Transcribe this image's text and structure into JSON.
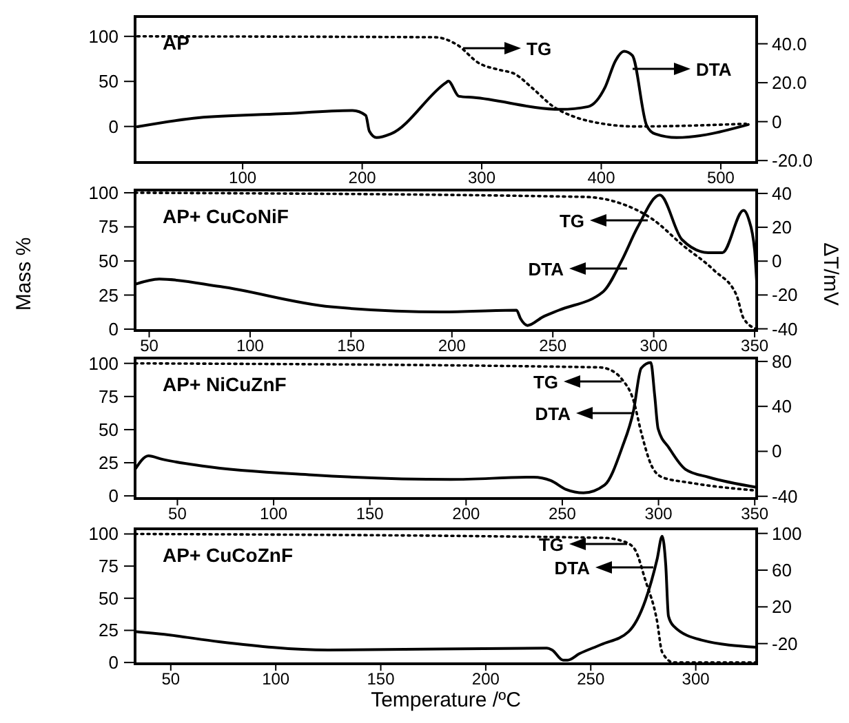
{
  "chart_data": [
    {
      "type": "line",
      "title": "AP",
      "xlim": [
        10,
        530
      ],
      "xticks": [
        100,
        200,
        300,
        400,
        500
      ],
      "ylim": [
        -40,
        122
      ],
      "yticks": [
        0,
        50,
        100
      ],
      "y2lim": [
        -21,
        54
      ],
      "y2ticks": [
        {
          "value": -20,
          "label": "-20.0"
        },
        0,
        {
          "value": 20,
          "label": "20.0"
        },
        {
          "value": 40,
          "label": "40.0"
        }
      ],
      "series": [
        {
          "line_style": "dotted",
          "x": [
            12,
            261,
            279,
            298,
            314,
            328,
            342,
            360,
            379,
            397,
            429,
            521
          ],
          "values": [
            100,
            99,
            91,
            70,
            63,
            58,
            43,
            22,
            10,
            4,
            0,
            3
          ]
        },
        {
          "line_style": "solid",
          "axis": "y2",
          "x": [
            12,
            63,
            132,
            192,
            203,
            206,
            212,
            224,
            270,
            272,
            281,
            293,
            366,
            389,
            403,
            412,
            419,
            426,
            438,
            445,
            463,
            523
          ],
          "values": [
            -2.6,
            2,
            4,
            5.7,
            3.2,
            -4.9,
            -8.2,
            -6.3,
            20,
            20.8,
            13,
            12.4,
            6.3,
            7.7,
            17.4,
            31.4,
            36.1,
            34,
            -2,
            -6.3,
            -8.2,
            -1.5
          ]
        }
      ],
      "annotations": [
        "TG",
        "DTA"
      ]
    },
    {
      "type": "line",
      "title": "AP+ CuCoNiF",
      "ylabel": "Mass %",
      "y2label": "ΔT/mV",
      "xlim": [
        43,
        351
      ],
      "xticks": [
        50,
        100,
        150,
        200,
        250,
        300,
        350
      ],
      "ylim": [
        -1,
        102
      ],
      "yticks": [
        0,
        25,
        50,
        75,
        100
      ],
      "y2lim": [
        -41,
        42
      ],
      "y2ticks": [
        -40,
        -20,
        0,
        20,
        40
      ],
      "series": [
        {
          "line_style": "dotted",
          "x": [
            43,
            265,
            282,
            300,
            314,
            330,
            341,
            344.5,
            351
          ],
          "values": [
            100,
            97,
            93,
            80,
            62,
            43,
            25,
            8,
            0
          ]
        },
        {
          "line_style": "solid",
          "axis": "y2",
          "x": [
            43,
            55,
            85,
            140,
            195,
            232,
            234,
            237.5,
            245,
            253,
            275,
            284,
            292,
            303,
            314,
            327,
            334,
            344.5,
            347,
            350,
            351
          ],
          "values": [
            -13.7,
            -10.6,
            -15,
            -27,
            -30,
            -29,
            -34,
            -38,
            -33,
            -29,
            -18,
            0,
            20,
            39,
            12.7,
            5,
            5,
            30,
            25,
            6.5,
            -12
          ]
        }
      ],
      "annotations": [
        "TG",
        "DTA"
      ]
    },
    {
      "type": "line",
      "title": "AP+ NiCuZnF",
      "xlim": [
        28,
        351
      ],
      "xticks": [
        50,
        100,
        150,
        200,
        250,
        300,
        350
      ],
      "ylim": [
        -2,
        104
      ],
      "yticks": [
        0,
        25,
        50,
        75,
        100
      ],
      "y2lim": [
        -42,
        83
      ],
      "y2ticks": [
        -40,
        0,
        40,
        80
      ],
      "series": [
        {
          "line_style": "dotted",
          "x": [
            28,
            269,
            275,
            281,
            287,
            291,
            296,
            302,
            316,
            351
          ],
          "values": [
            100,
            97,
            95,
            88,
            72,
            48,
            24,
            14,
            10,
            4
          ]
        },
        {
          "line_style": "solid",
          "axis": "y2",
          "x": [
            28,
            35,
            42,
            63,
            120,
            192,
            235,
            244,
            252,
            261,
            272,
            281,
            287,
            291,
            296,
            298,
            299.8,
            305.5,
            314,
            326,
            351
          ],
          "values": [
            -16,
            -4,
            -7,
            -13,
            -21,
            -25,
            -23,
            -26,
            -34,
            -37,
            -30,
            3,
            36,
            74,
            79,
            50,
            20,
            3,
            -16,
            -23,
            -32
          ]
        }
      ],
      "annotations": [
        "TG",
        "DTA"
      ]
    },
    {
      "type": "line",
      "title": "AP+ CuCoZnF",
      "xlabel": "Temperature /ºC",
      "xlim": [
        33,
        329
      ],
      "xticks": [
        50,
        100,
        150,
        200,
        250,
        300
      ],
      "ylim": [
        -1,
        104
      ],
      "yticks": [
        0,
        25,
        50,
        75,
        100
      ],
      "y2lim": [
        -42,
        105
      ],
      "y2ticks": [
        -20,
        20,
        60,
        100
      ],
      "series": [
        {
          "line_style": "dotted",
          "x": [
            33,
            255.7,
            266,
            271,
            276,
            281.6,
            284,
            289.5,
            329
          ],
          "values": [
            100,
            97,
            94,
            88,
            64,
            32,
            8,
            0,
            0
          ]
        },
        {
          "line_style": "solid",
          "axis": "y2",
          "x": [
            33,
            47,
            73,
            125,
            229,
            231.6,
            236.8,
            239,
            244.6,
            255,
            268,
            276,
            281.6,
            284,
            285.7,
            287,
            289.5,
            302.5,
            329
          ],
          "values": [
            -7,
            -10,
            -18,
            -27,
            -25,
            -27,
            -38,
            -38,
            -31,
            -21,
            -7,
            27,
            72,
            97,
            66,
            10,
            -1,
            -16,
            -24
          ]
        }
      ],
      "annotations": [
        "TG",
        "DTA"
      ]
    }
  ]
}
